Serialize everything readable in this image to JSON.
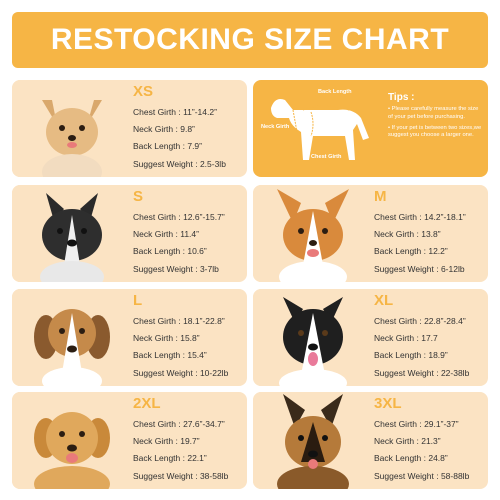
{
  "header": {
    "title": "RESTOCKING SIZE CHART"
  },
  "tips": {
    "title": "Tips :",
    "items": [
      "• Please carefully measure the size of your pet before purchasing.",
      "• If your pet is between two sizes,we suggest you choose a larger one."
    ],
    "labels": {
      "back": "Back Length",
      "neck": "Neck Girth",
      "chest": "Chest Girth"
    }
  },
  "sizes": [
    {
      "name": "XS",
      "chest": "Chest Girth : 11”-14.2”",
      "neck": "Neck Girth : 9.8”",
      "back": "Back Length : 7.9”",
      "weight": "Suggest Weight : 2.5-3lb",
      "breed": "chihuahua"
    },
    {
      "name": "S",
      "chest": "Chest Girth : 12.6”-15.7”",
      "neck": "Neck Girth : 11.4”",
      "back": "Back Length : 10.6”",
      "weight": "Suggest Weight : 3-7lb",
      "breed": "french-bulldog"
    },
    {
      "name": "M",
      "chest": "Chest Girth : 14.2”-18.1”",
      "neck": "Neck Girth : 13.8”",
      "back": "Back Length : 12.2”",
      "weight": "Suggest Weight : 6-12lb",
      "breed": "corgi"
    },
    {
      "name": "L",
      "chest": "Chest Girth : 18.1”-22.8”",
      "neck": "Neck Girth : 15.8”",
      "back": "Back Length : 15.4”",
      "weight": "Suggest Weight : 10-22lb",
      "breed": "beagle"
    },
    {
      "name": "XL",
      "chest": "Chest Girth : 22.8”-28.4”",
      "neck": "Neck Girth : 17.7",
      "back": "Back Length : 18.9”",
      "weight": "Suggest Weight : 22-38lb",
      "breed": "border-collie"
    },
    {
      "name": "2XL",
      "chest": "Chest Girth : 27.6”-34.7”",
      "neck": "Neck Girth : 19.7”",
      "back": "Back Length : 22.1”",
      "weight": "Suggest Weight : 38-58lb",
      "breed": "golden-retriever"
    },
    {
      "name": "3XL",
      "chest": "Chest Girth : 29.1”-37”",
      "neck": "Neck Girth : 21.3”",
      "back": "Back Length : 24.8”",
      "weight": "Suggest Weight : 58-88lb",
      "breed": "german-shepherd"
    }
  ],
  "colors": {
    "accent": "#f6b545",
    "card": "#fbe3c3",
    "text": "#333333"
  }
}
